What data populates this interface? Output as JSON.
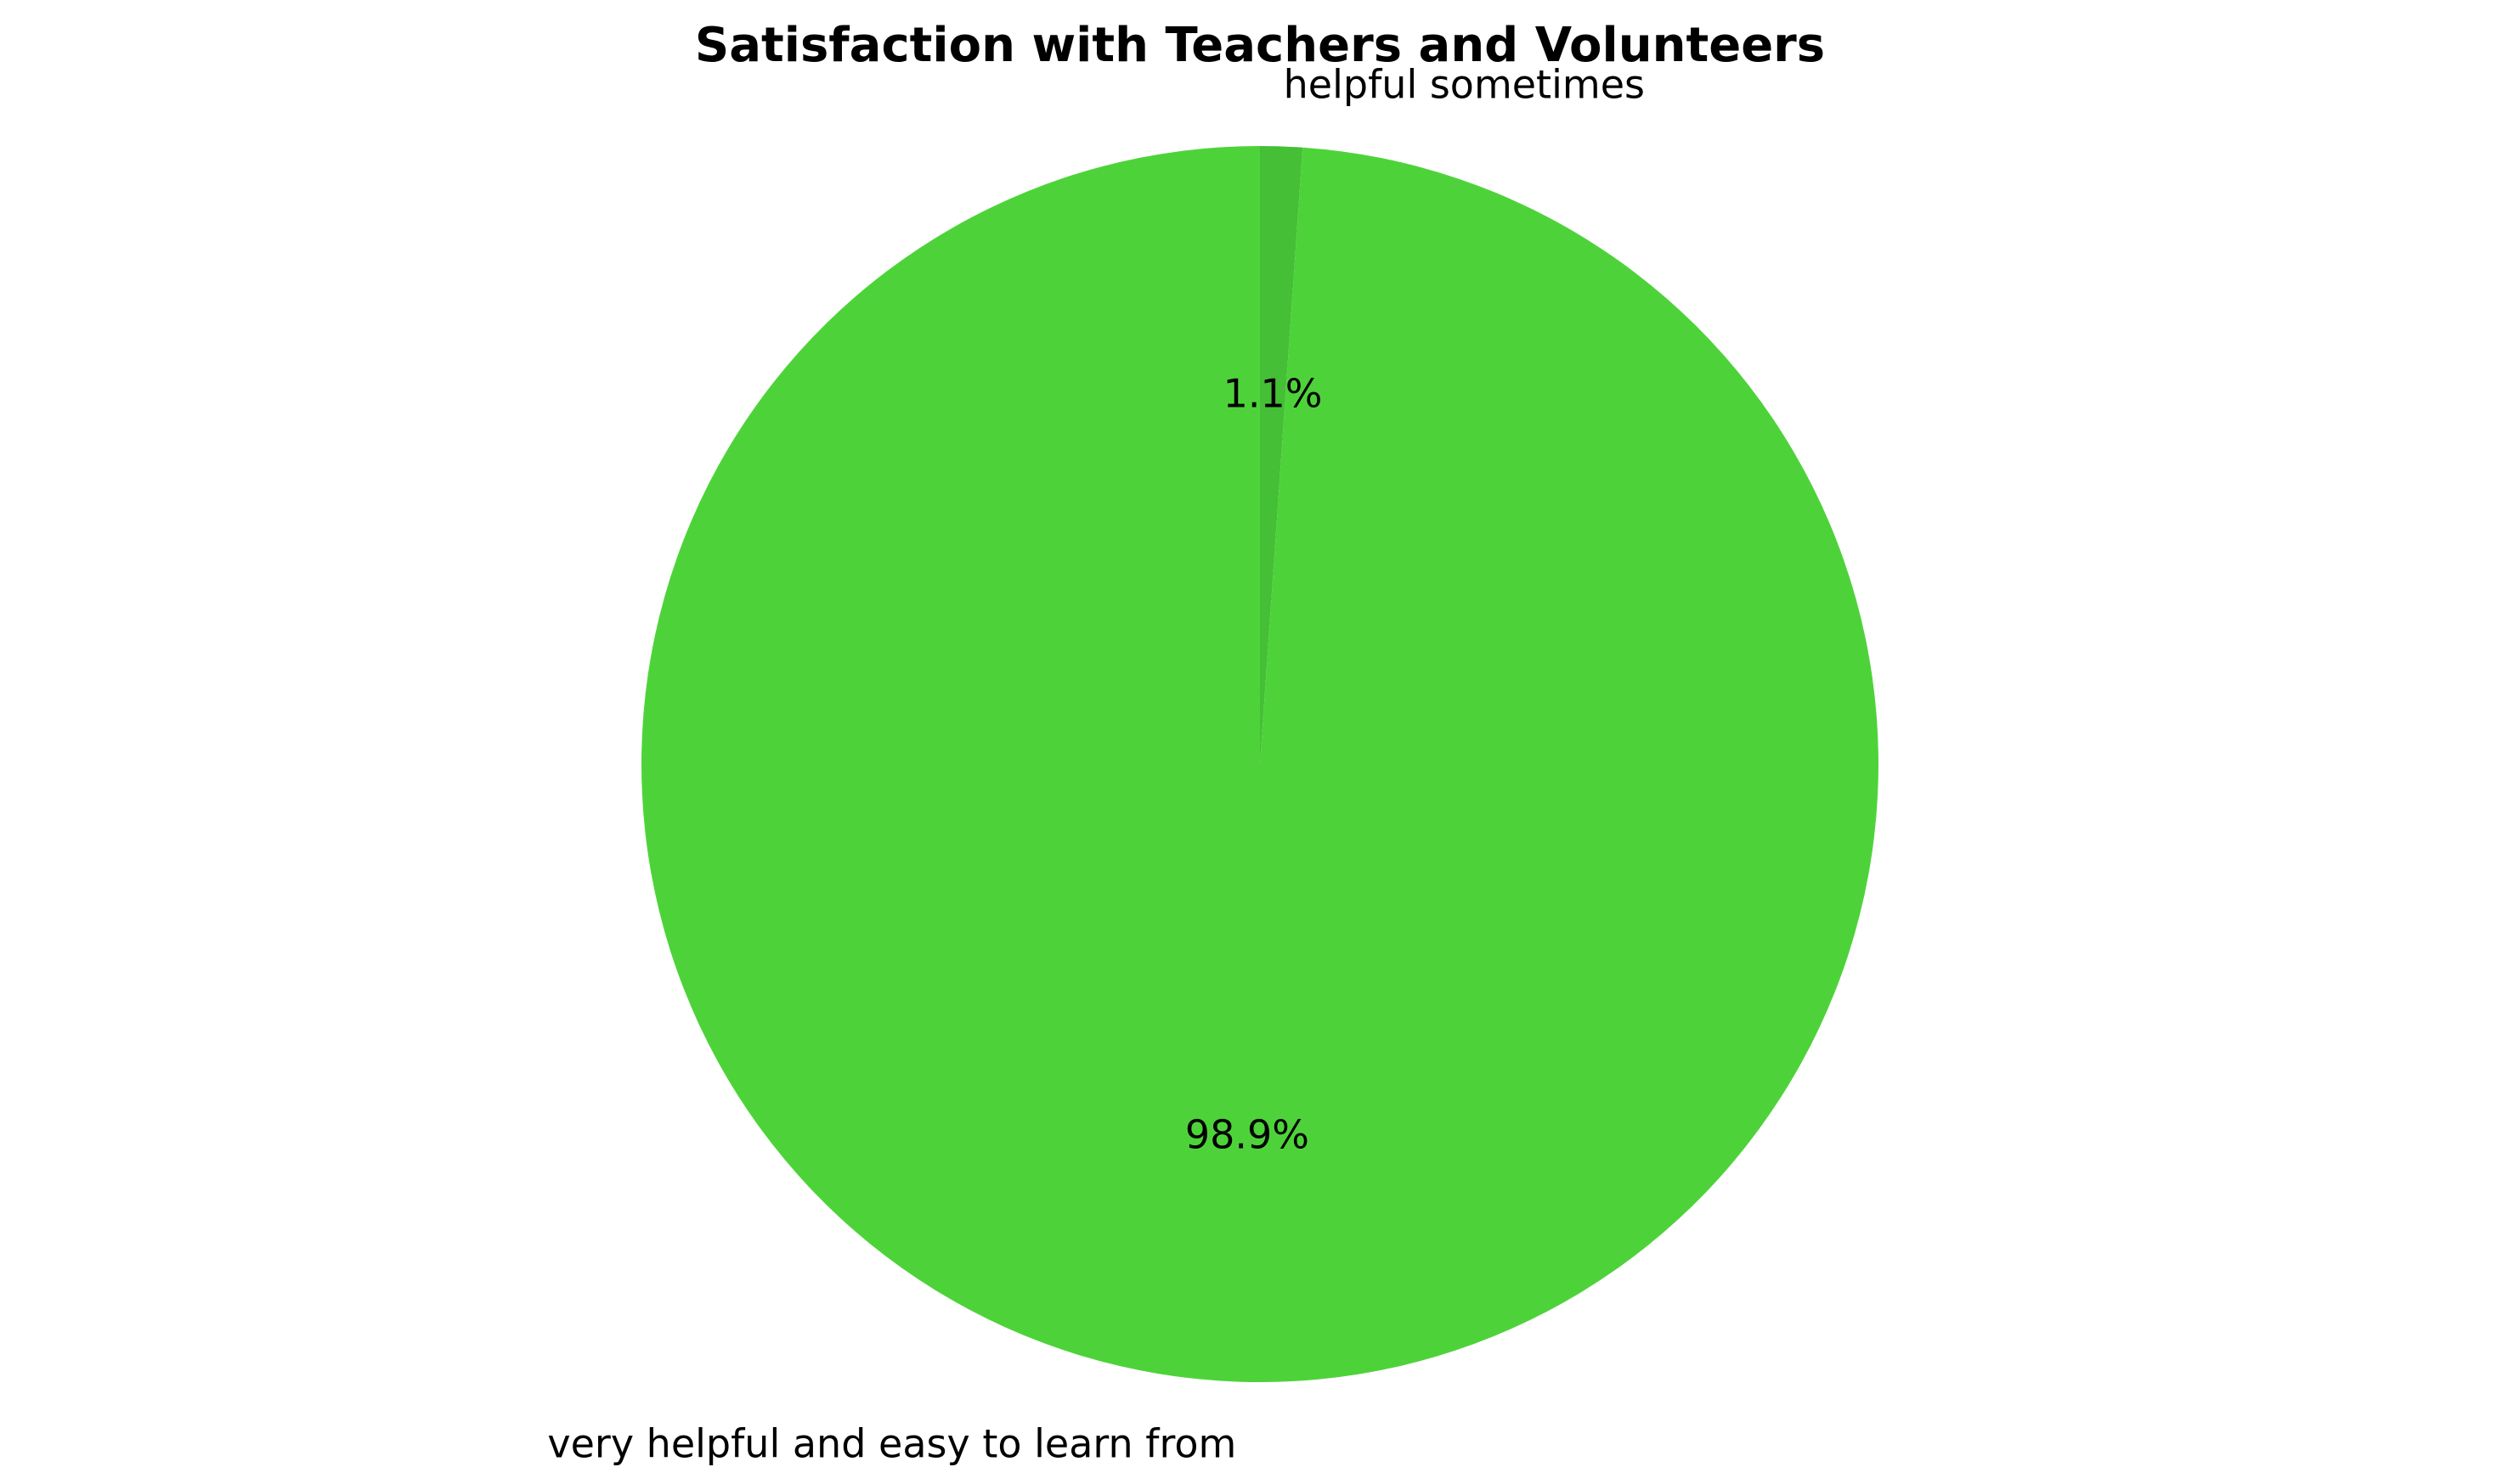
{
  "chart_data": {
    "type": "pie",
    "title": "Satisfaction with Teachers and Volunteers",
    "slices": [
      {
        "label": "helpful sometimes",
        "value": 1.1,
        "pct_label": "1.1%",
        "color": "#45bf36"
      },
      {
        "label": "very helpful and easy to learn from",
        "value": 98.9,
        "pct_label": "98.9%",
        "color": "#4dd339"
      }
    ],
    "legend": "none"
  }
}
